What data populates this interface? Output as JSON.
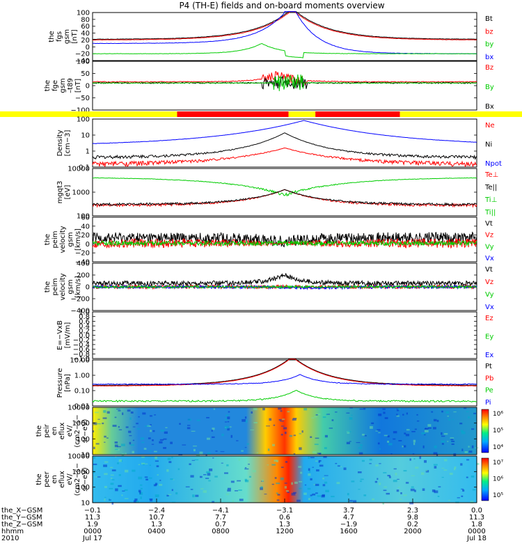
{
  "title": "P4 (TH-E) fields and on-board moments overview",
  "colors": {
    "black": "#000000",
    "red": "#ff0000",
    "green": "#00cc00",
    "blue": "#0000ff",
    "yellow": "#ffff00",
    "bar_red": "#ff0000"
  },
  "chart_data": [
    {
      "type": "line",
      "ylabel": "the fgs gsm [nT]",
      "ylim": [
        -40,
        100
      ],
      "ticks": [
        "100",
        "80",
        "60",
        "40",
        "20",
        "0",
        "−20",
        "−40"
      ],
      "series": [
        {
          "name": "Bt",
          "color": "#000000"
        },
        {
          "name": "bz",
          "color": "#ff0000"
        },
        {
          "name": "by",
          "color": "#00cc00"
        },
        {
          "name": "bx",
          "color": "#0000ff"
        }
      ]
    },
    {
      "type": "line",
      "ylabel": "the fge gsm –t89 [nT]",
      "ylim": [
        -125,
        100
      ],
      "ticks": [
        "100",
        "50",
        "0",
        "−50",
        "−100"
      ],
      "series": [
        {
          "name": "Bz",
          "color": "#ff0000"
        },
        {
          "name": "By",
          "color": "#00cc00"
        },
        {
          "name": "Bx",
          "color": "#000000"
        }
      ]
    },
    {
      "type": "bar",
      "note": "mode bar",
      "colors": [
        "yellow",
        "red",
        "yellow",
        "red",
        "yellow"
      ]
    },
    {
      "type": "line",
      "ylabel": "Density [cm−3]",
      "scale": "log",
      "ticks": [
        "100",
        "10",
        "1",
        "0.1"
      ],
      "series": [
        {
          "name": "Ne",
          "color": "#ff0000"
        },
        {
          "name": "Ni",
          "color": "#000000"
        },
        {
          "name": "Npot",
          "color": "#0000ff"
        }
      ]
    },
    {
      "type": "line",
      "ylabel": "mgqt3 [eV]",
      "scale": "log",
      "ticks": [
        "10000",
        "1000",
        "100"
      ],
      "series": [
        {
          "name": "Te⊥",
          "color": "#ff0000"
        },
        {
          "name": "Te||",
          "color": "#000000"
        },
        {
          "name": "Ti⊥",
          "color": "#00cc00"
        },
        {
          "name": "Ti||",
          "color": "#00cc00"
        }
      ]
    },
    {
      "type": "line",
      "ylabel": "the peim velocity gsm [km/s]",
      "ylim": [
        -50,
        70
      ],
      "ticks": [
        "60",
        "40",
        "20",
        "0",
        "−20",
        "−40"
      ],
      "series": [
        {
          "name": "Vt",
          "color": "#000000"
        },
        {
          "name": "Vz",
          "color": "#ff0000"
        },
        {
          "name": "Vy",
          "color": "#00cc00"
        },
        {
          "name": "Vx",
          "color": "#0000ff"
        }
      ]
    },
    {
      "type": "line",
      "ylabel": "the peim velocity gsm [km/s]",
      "ylim": [
        -400,
        400
      ],
      "ticks": [
        "400",
        "200",
        "0",
        "−200",
        "−400"
      ],
      "series": [
        {
          "name": "Vt",
          "color": "#000000"
        },
        {
          "name": "Vz",
          "color": "#ff0000"
        },
        {
          "name": "Vy",
          "color": "#00cc00"
        },
        {
          "name": "Vx",
          "color": "#0000ff"
        }
      ]
    },
    {
      "type": "line",
      "ylabel": "E=−VxB [mV/m]",
      "ylim": [
        -1,
        1
      ],
      "ticks": [
        "1.0",
        "0.8",
        "0.6",
        "0.4",
        "0.2",
        "0.0",
        "−0.2",
        "−0.4",
        "−0.6",
        "−0.8",
        "−1.0"
      ],
      "series": [
        {
          "name": "Ez",
          "color": "#ff0000"
        },
        {
          "name": "Ey",
          "color": "#00cc00"
        },
        {
          "name": "Ex",
          "color": "#0000ff"
        }
      ]
    },
    {
      "type": "line",
      "ylabel": "Pressure [nPa]",
      "scale": "log",
      "ticks": [
        "10.00",
        "1.00",
        "0.10",
        "0.01"
      ],
      "series": [
        {
          "name": "Pt",
          "color": "#000000"
        },
        {
          "name": "Pb",
          "color": "#ff0000"
        },
        {
          "name": "Pe",
          "color": "#00cc00"
        },
        {
          "name": "Pi",
          "color": "#0000ff"
        }
      ]
    },
    {
      "type": "heatmap",
      "ylabel": "the peir en eflux eV/ (cm2−s− sr−eV)",
      "ticks": [
        "10000",
        "1000",
        "100",
        "10"
      ],
      "colorbar": [
        "10⁶",
        "10⁵",
        "10⁴"
      ]
    },
    {
      "type": "heatmap",
      "ylabel": "the peer en eflux eV/ (cm2−s− sr−eV)",
      "ticks": [
        "10000",
        "1000",
        "100",
        "10"
      ],
      "colorbar": [
        "10⁷",
        "10⁶",
        "10⁵"
      ]
    }
  ],
  "axis": {
    "rows": [
      "the_X−GSM",
      "the_Y−GSM",
      "the_Z−GSM",
      "hhmm",
      "2010"
    ],
    "cols": [
      [
        "−0.1",
        "11.3",
        "1.9",
        "0000",
        "Jul 17"
      ],
      [
        "−2.4",
        "10.7",
        "1.3",
        "0400",
        ""
      ],
      [
        "−4.1",
        "7.7",
        "0.7",
        "0800",
        ""
      ],
      [
        "−3.1",
        "0.6",
        "1.3",
        "1200",
        ""
      ],
      [
        "3.7",
        "4.7",
        "−1.9",
        "1600",
        ""
      ],
      [
        "2.3",
        "9.8",
        "0.2",
        "2000",
        ""
      ],
      [
        "0.0",
        "11.3",
        "1.8",
        "0000",
        "Jul 18"
      ]
    ]
  }
}
